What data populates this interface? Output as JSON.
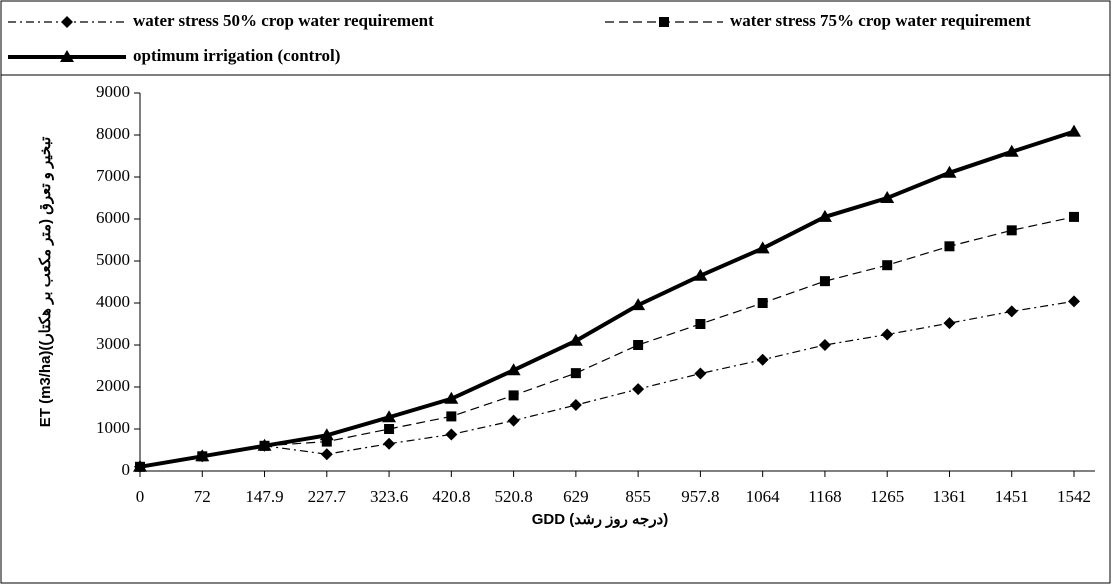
{
  "chart_data": {
    "type": "line",
    "xlabel": "GDD (درجه روز رشد)",
    "ylabel": "ET (m3/ha)(تبخیر و تعرق (متر مکعب بر هکتار)",
    "categories": [
      "0",
      "72",
      "147.9",
      "227.7",
      "323.6",
      "420.8",
      "520.8",
      "629",
      "855",
      "957.8",
      "1064",
      "1168",
      "1265",
      "1361",
      "1451",
      "1542"
    ],
    "series": [
      {
        "name": "water stress 50% crop water requirement",
        "color": "#000000",
        "dash": "dash-dot",
        "marker": "diamond",
        "values": [
          100,
          350,
          600,
          400,
          650,
          870,
          1200,
          1570,
          1950,
          2320,
          2650,
          3000,
          3250,
          3520,
          3800,
          4040
        ]
      },
      {
        "name": "water stress 75% crop water requirement",
        "color": "#000000",
        "dash": "dashed",
        "marker": "square",
        "values": [
          100,
          350,
          600,
          700,
          1000,
          1300,
          1800,
          2330,
          3000,
          3500,
          4000,
          4520,
          4900,
          5350,
          5730,
          6050
        ]
      },
      {
        "name": "optimum irrigation (control)",
        "color": "#000000",
        "dash": "solid",
        "marker": "triangle",
        "values": [
          100,
          350,
          600,
          850,
          1280,
          1720,
          2400,
          3100,
          3950,
          4650,
          5300,
          6050,
          6500,
          7100,
          7600,
          8080
        ]
      }
    ],
    "ylim": [
      0,
      9000
    ],
    "yticks": [
      0,
      1000,
      2000,
      3000,
      4000,
      5000,
      6000,
      7000,
      8000,
      9000
    ],
    "legend": "top"
  }
}
